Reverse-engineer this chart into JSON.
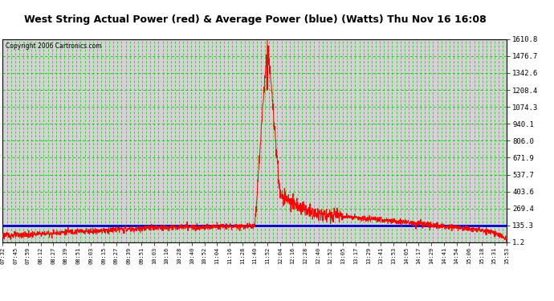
{
  "title": "West String Actual Power (red) & Average Power (blue) (Watts) Thu Nov 16 16:08",
  "copyright": "Copyright 2006 Cartronics.com",
  "yticks": [
    1.2,
    135.3,
    269.4,
    403.6,
    537.7,
    671.9,
    806.0,
    940.1,
    1074.3,
    1208.4,
    1342.6,
    1476.7,
    1610.8
  ],
  "xtick_labels": [
    "07:32",
    "07:45",
    "07:59",
    "08:12",
    "08:27",
    "08:39",
    "08:51",
    "09:03",
    "09:15",
    "09:27",
    "09:39",
    "09:51",
    "10:03",
    "10:16",
    "10:28",
    "10:40",
    "10:52",
    "11:04",
    "11:16",
    "11:28",
    "11:40",
    "11:52",
    "12:04",
    "12:16",
    "12:28",
    "12:40",
    "12:52",
    "13:05",
    "13:17",
    "13:29",
    "13:41",
    "13:53",
    "14:05",
    "14:17",
    "14:29",
    "14:41",
    "14:54",
    "15:06",
    "15:18",
    "15:31",
    "15:53"
  ],
  "ylim": [
    1.2,
    1610.8
  ],
  "avg_power": 135.3,
  "background_color": "#ffffff",
  "plot_bg": "#d3d3d3",
  "red_color": "#ff0000",
  "blue_color": "#0000cc",
  "grid_color": "#00cc00",
  "title_bg": "#ffffff",
  "title_fg": "#000000",
  "text_color": "#000000",
  "border_color": "#000000",
  "red_profile": [
    55,
    58,
    62,
    68,
    75,
    82,
    88,
    90,
    95,
    100,
    105,
    110,
    115,
    118,
    120,
    122,
    124,
    125,
    128,
    130,
    135,
    1610,
    370,
    290,
    255,
    235,
    215,
    200,
    195,
    185,
    180,
    170,
    160,
    150,
    140,
    130,
    120,
    108,
    95,
    80,
    25
  ]
}
